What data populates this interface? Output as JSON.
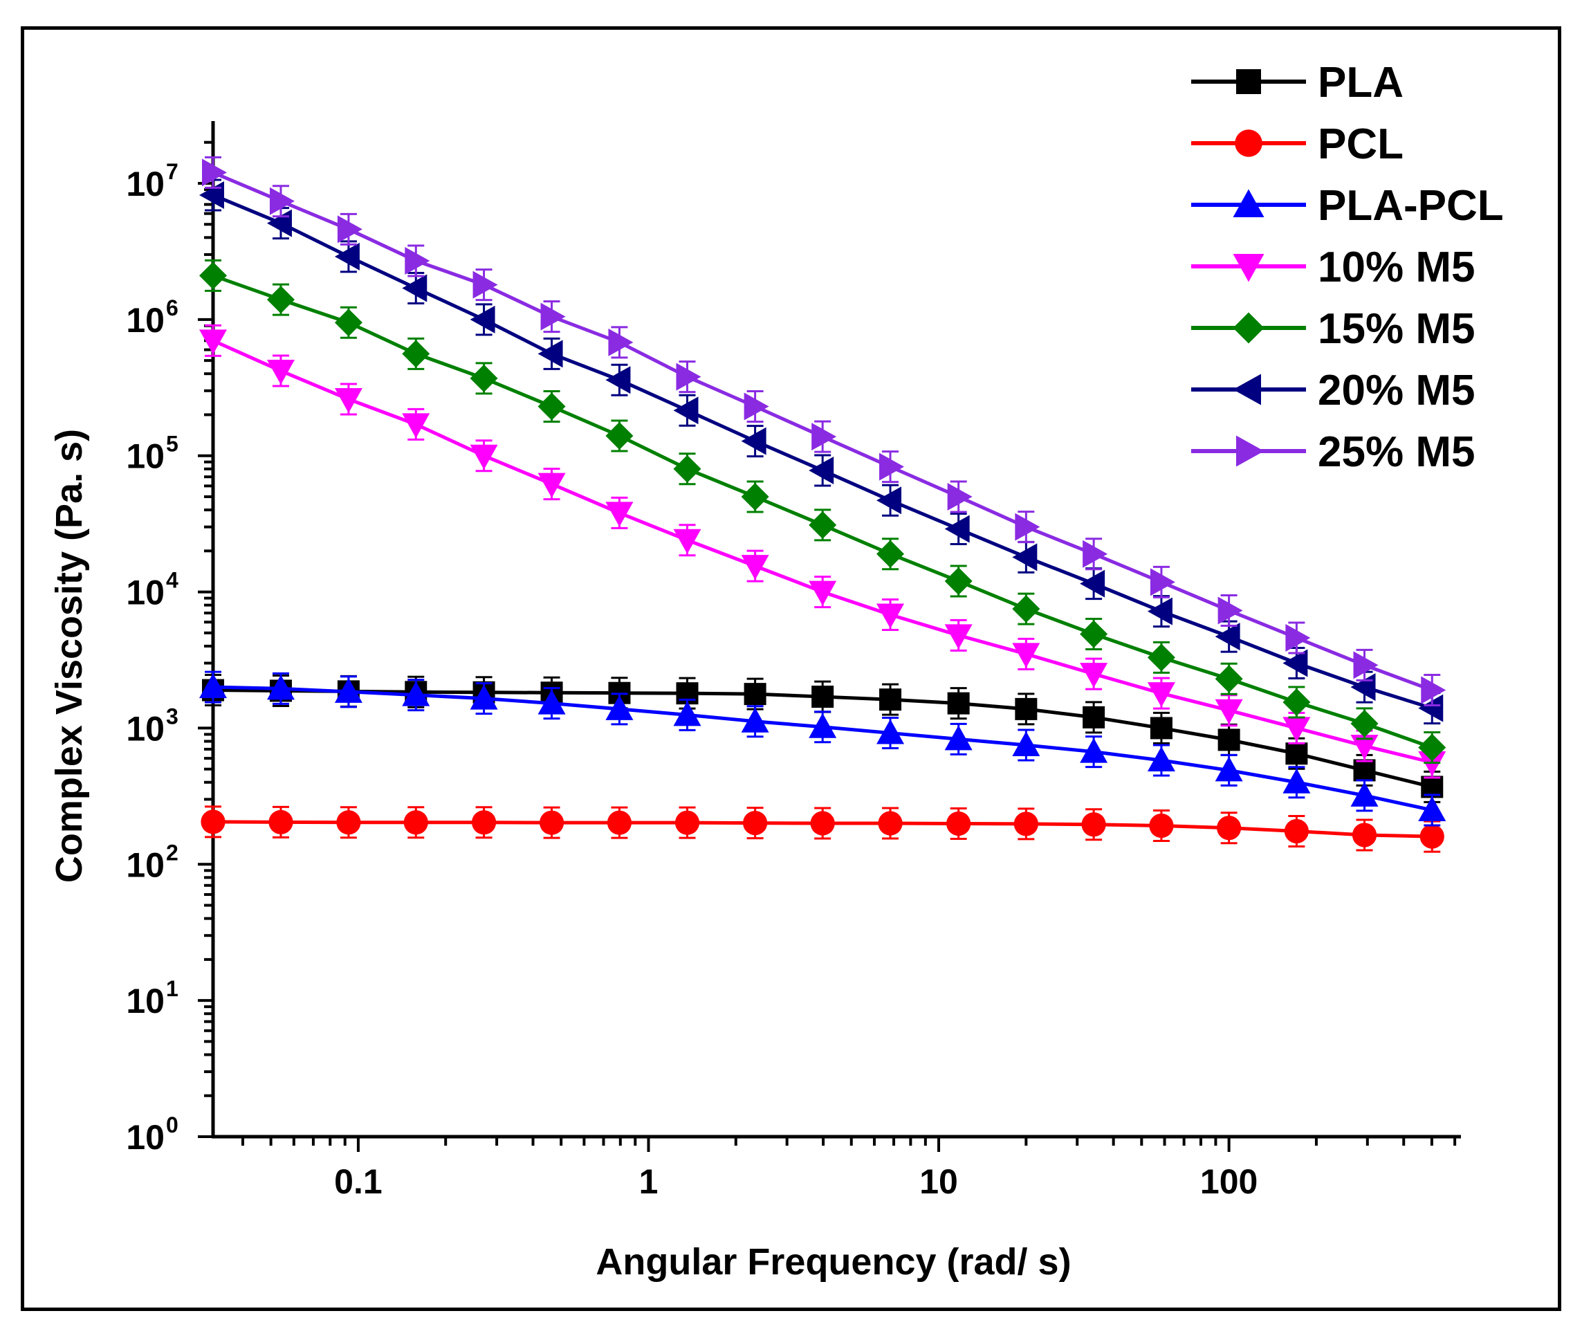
{
  "chart_data": {
    "type": "line",
    "xlabel": "Angular Frequency (rad/ s)",
    "ylabel": "Complex Viscosity (Pa. s)",
    "x_scale": "log",
    "y_scale": "log",
    "xlim": [
      0.0316,
      630
    ],
    "ylim": [
      1,
      10000000
    ],
    "x_ticks": [
      {
        "value": 0.1,
        "label": "0.1"
      },
      {
        "value": 1,
        "label": "1"
      },
      {
        "value": 10,
        "label": "10"
      },
      {
        "value": 100,
        "label": "100"
      }
    ],
    "y_ticks": [
      {
        "value": 1,
        "base": "10",
        "exp": "0"
      },
      {
        "value": 10,
        "base": "10",
        "exp": "1"
      },
      {
        "value": 100,
        "base": "10",
        "exp": "2"
      },
      {
        "value": 1000,
        "base": "10",
        "exp": "3"
      },
      {
        "value": 10000,
        "base": "10",
        "exp": "4"
      },
      {
        "value": 100000,
        "base": "10",
        "exp": "5"
      },
      {
        "value": 1000000,
        "base": "10",
        "exp": "6"
      },
      {
        "value": 10000000,
        "base": "10",
        "exp": "7"
      }
    ],
    "grid": false,
    "legend_position": "top-right",
    "x": [
      0.0316,
      0.0541,
      0.0926,
      0.158,
      0.271,
      0.464,
      0.794,
      1.36,
      2.33,
      3.98,
      6.81,
      11.7,
      20.0,
      34.2,
      58.5,
      100,
      171,
      293,
      501
    ],
    "series": [
      {
        "name": "PLA",
        "color": "#000000",
        "marker": "square",
        "values": [
          1900,
          1880,
          1860,
          1840,
          1830,
          1820,
          1810,
          1800,
          1780,
          1700,
          1620,
          1520,
          1380,
          1200,
          1000,
          820,
          650,
          490,
          370
        ]
      },
      {
        "name": "PCL",
        "color": "#ff0000",
        "marker": "circle",
        "values": [
          205,
          204,
          203,
          203,
          203,
          202,
          202,
          202,
          201,
          200,
          200,
          199,
          198,
          196,
          192,
          185,
          175,
          164,
          160
        ]
      },
      {
        "name": "PLA-PCL",
        "color": "#0000ff",
        "marker": "triangle-up",
        "values": [
          2000,
          1950,
          1850,
          1750,
          1650,
          1520,
          1380,
          1250,
          1120,
          1020,
          920,
          830,
          750,
          670,
          580,
          490,
          400,
          320,
          250
        ]
      },
      {
        "name": "10% M5",
        "color": "#ff00ff",
        "marker": "triangle-down",
        "values": [
          700000,
          420000,
          260000,
          170000,
          100000,
          62000,
          38000,
          24000,
          15500,
          10000,
          6800,
          4800,
          3500,
          2500,
          1800,
          1350,
          1000,
          740,
          560
        ]
      },
      {
        "name": "15% M5",
        "color": "#008000",
        "marker": "diamond",
        "values": [
          2100000,
          1400000,
          950000,
          560000,
          370000,
          230000,
          140000,
          80000,
          50000,
          31000,
          19000,
          12000,
          7500,
          4900,
          3300,
          2300,
          1550,
          1080,
          720
        ]
      },
      {
        "name": "20% M5",
        "color": "#000080",
        "marker": "triangle-left",
        "values": [
          8200000,
          5100000,
          2900000,
          1700000,
          1000000,
          560000,
          360000,
          215000,
          128000,
          78000,
          47000,
          29000,
          18000,
          11500,
          7200,
          4700,
          3000,
          2000,
          1400
        ]
      },
      {
        "name": "25% M5",
        "color": "#8a2be2",
        "marker": "triangle-right",
        "values": [
          12000000,
          7400000,
          4600000,
          2700000,
          1800000,
          1050000,
          680000,
          380000,
          230000,
          138000,
          83000,
          50000,
          30000,
          19000,
          11800,
          7300,
          4600,
          2900,
          1900
        ]
      }
    ]
  }
}
